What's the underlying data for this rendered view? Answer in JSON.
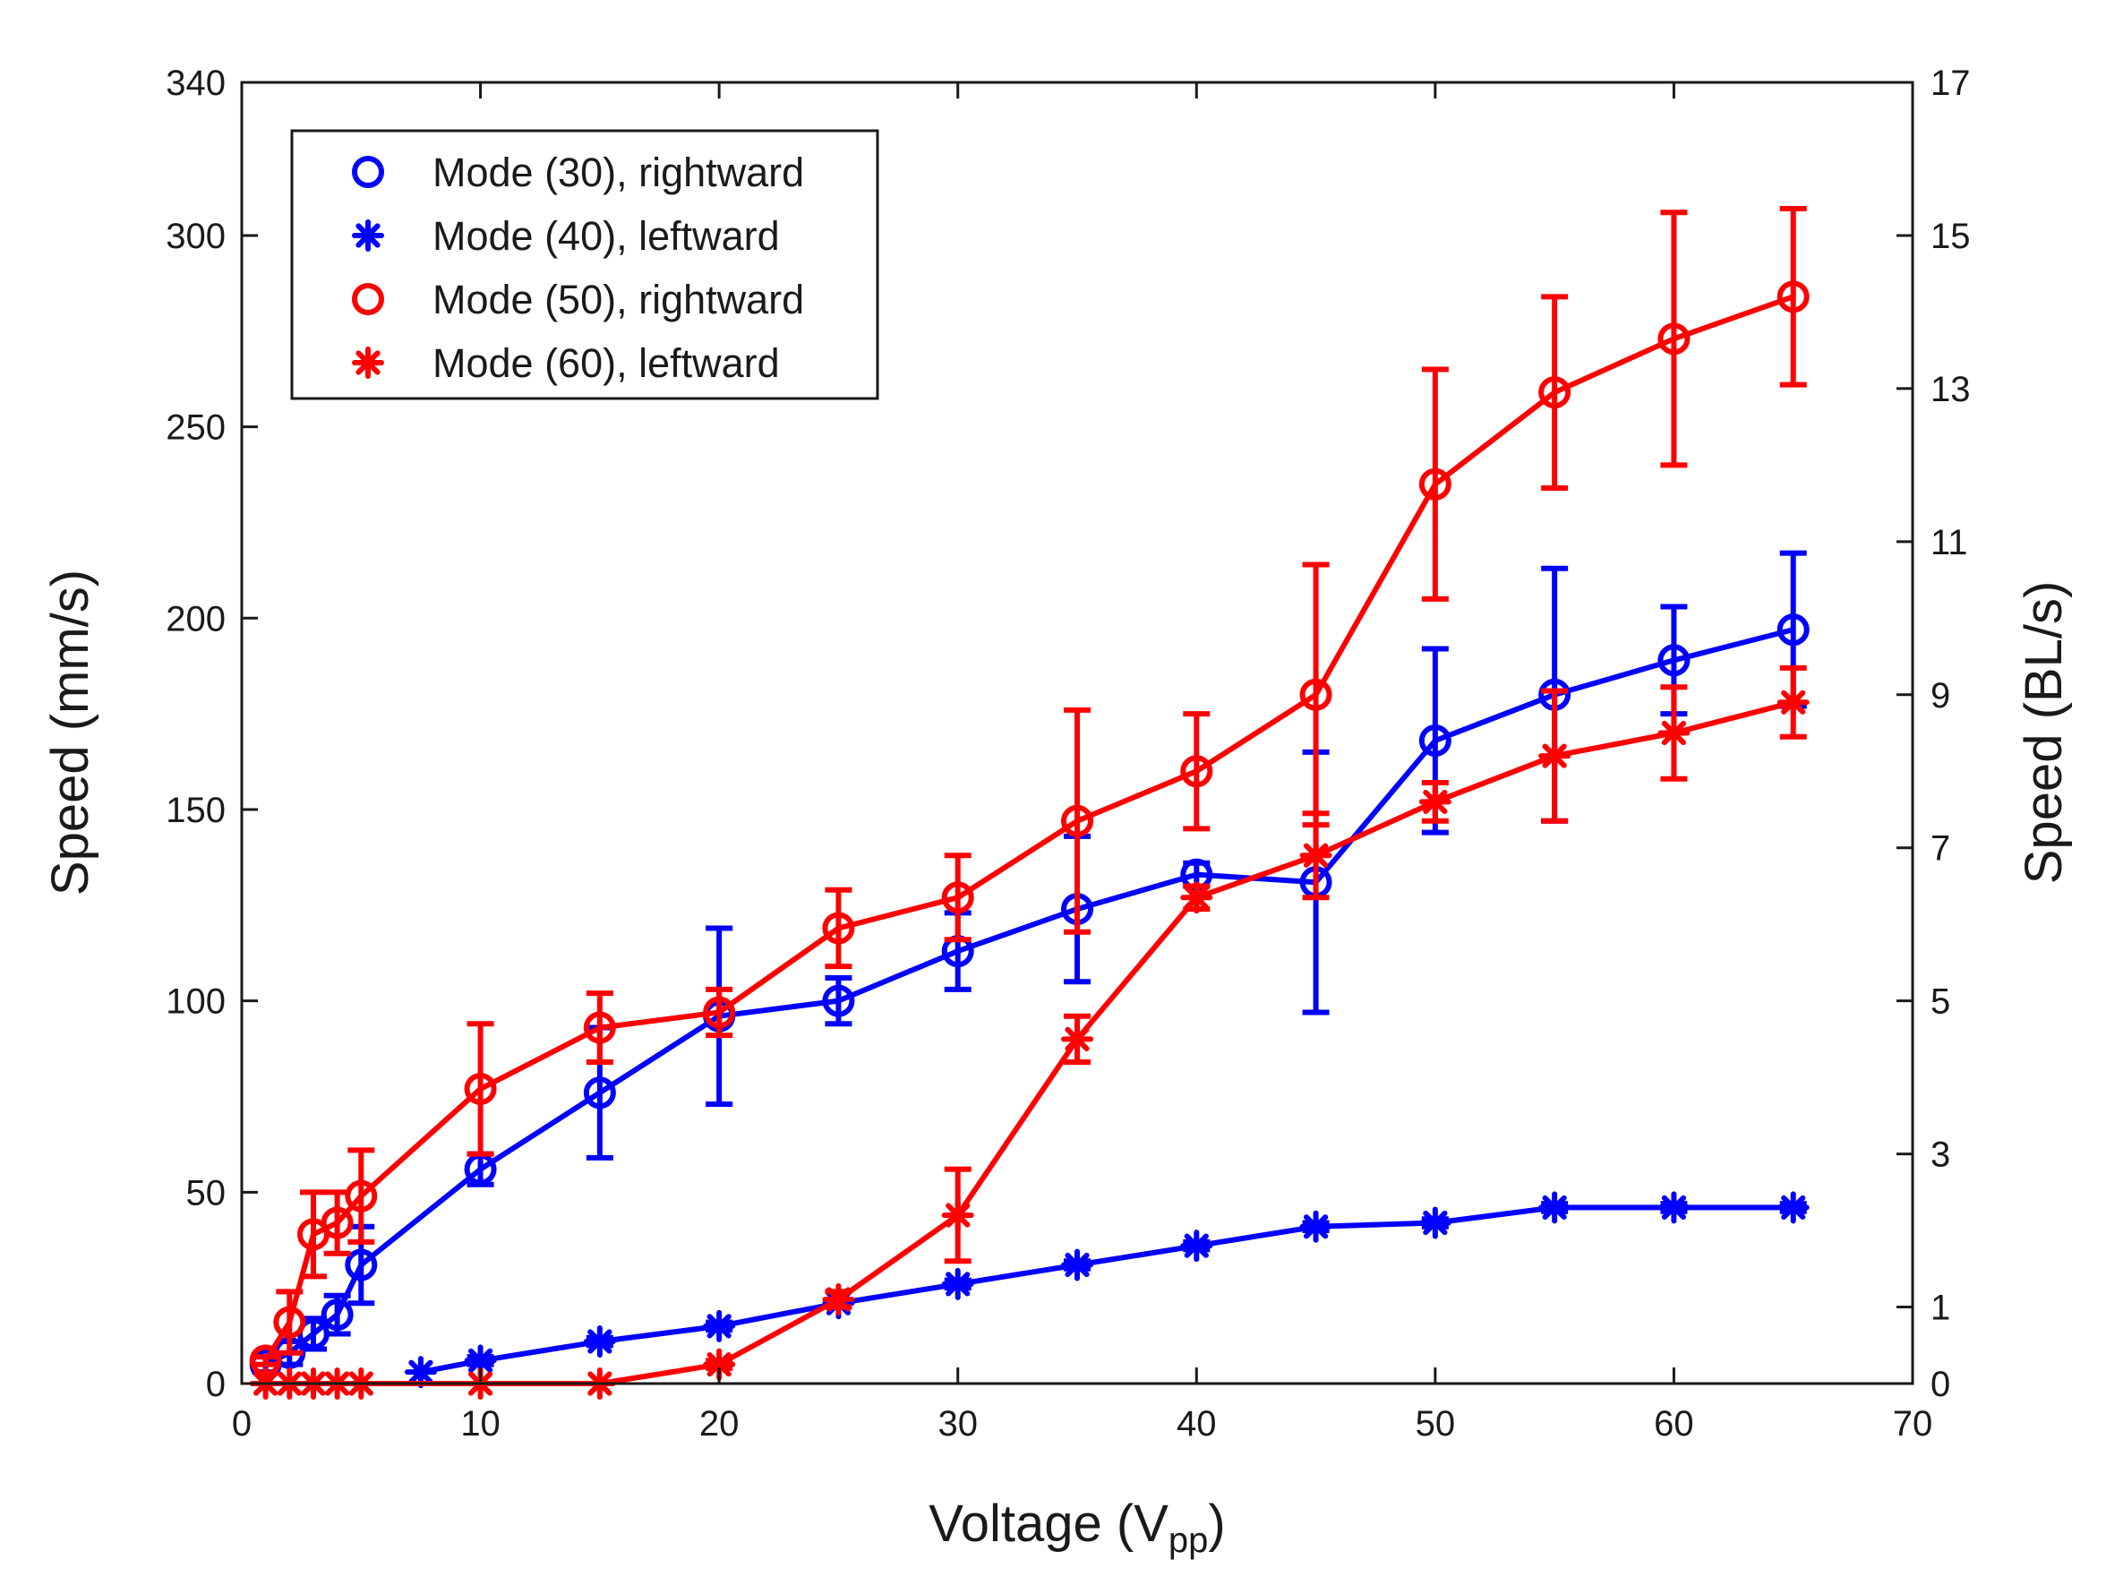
{
  "chart_data": {
    "type": "line",
    "xlabel": {
      "main": "Voltage (V",
      "sub": "pp",
      "close": ")"
    },
    "ylabel_left": "Speed (mm/s)",
    "ylabel_right": "Speed (BL/s)",
    "xlim": [
      0,
      70
    ],
    "ylim_left": [
      0,
      340
    ],
    "ylim_right": [
      0,
      17
    ],
    "x_ticks": [
      0,
      10,
      20,
      30,
      40,
      50,
      60,
      70
    ],
    "y_left_ticks": [
      0,
      50,
      100,
      150,
      200,
      250,
      300,
      340
    ],
    "y_right_ticks": [
      0,
      1,
      3,
      5,
      7,
      9,
      11,
      13,
      15,
      17
    ],
    "grid": false,
    "legend_position": "top-left",
    "series": [
      {
        "name": "Mode (30), rightward",
        "color": "#0000ff",
        "marker": "circle",
        "x": [
          1,
          2,
          3,
          4,
          5,
          10,
          15,
          20,
          25,
          30,
          35,
          40,
          45,
          50,
          55,
          60,
          65
        ],
        "y": [
          5,
          8,
          13,
          18,
          31,
          56,
          76,
          96,
          100,
          113,
          124,
          133,
          131,
          168,
          180,
          189,
          197
        ],
        "err": [
          2,
          3,
          4,
          5,
          10,
          4,
          17,
          23,
          6,
          10,
          19,
          3,
          34,
          24,
          33,
          14,
          20
        ]
      },
      {
        "name": "Mode (40), leftward",
        "color": "#0000ff",
        "marker": "asterisk",
        "x": [
          7.5,
          10,
          15,
          20,
          25,
          30,
          35,
          40,
          45,
          50,
          55,
          60,
          65
        ],
        "y": [
          3,
          6,
          11,
          15,
          21,
          26,
          31,
          36,
          41,
          42,
          46,
          46,
          46
        ],
        "err": [
          0,
          1,
          1,
          1,
          1,
          1,
          1,
          1,
          1,
          1,
          1,
          1,
          1
        ]
      },
      {
        "name": "Mode (50), rightward",
        "color": "#ff0000",
        "marker": "circle",
        "x": [
          1,
          2,
          3,
          4,
          5,
          10,
          15,
          20,
          25,
          30,
          35,
          40,
          45,
          50,
          55,
          60,
          65
        ],
        "y": [
          6,
          16,
          39,
          42,
          49,
          77,
          93,
          97,
          119,
          127,
          147,
          160,
          180,
          235,
          259,
          273,
          284
        ],
        "err": [
          1,
          8,
          11,
          8,
          12,
          17,
          9,
          6,
          10,
          11,
          29,
          15,
          34,
          30,
          25,
          33,
          23
        ]
      },
      {
        "name": "Mode (60), leftward",
        "color": "#ff0000",
        "marker": "asterisk",
        "x": [
          1,
          2,
          3,
          4,
          5,
          10,
          15,
          20,
          25,
          30,
          35,
          40,
          45,
          50,
          55,
          60,
          65
        ],
        "y": [
          0,
          0,
          0,
          0,
          0,
          0,
          0,
          5,
          22,
          44,
          90,
          127,
          138,
          152,
          164,
          170,
          178
        ],
        "err": [
          0,
          0,
          0,
          0,
          0,
          0,
          0,
          1,
          2,
          12,
          6,
          3,
          11,
          5,
          17,
          12,
          9
        ]
      }
    ]
  }
}
